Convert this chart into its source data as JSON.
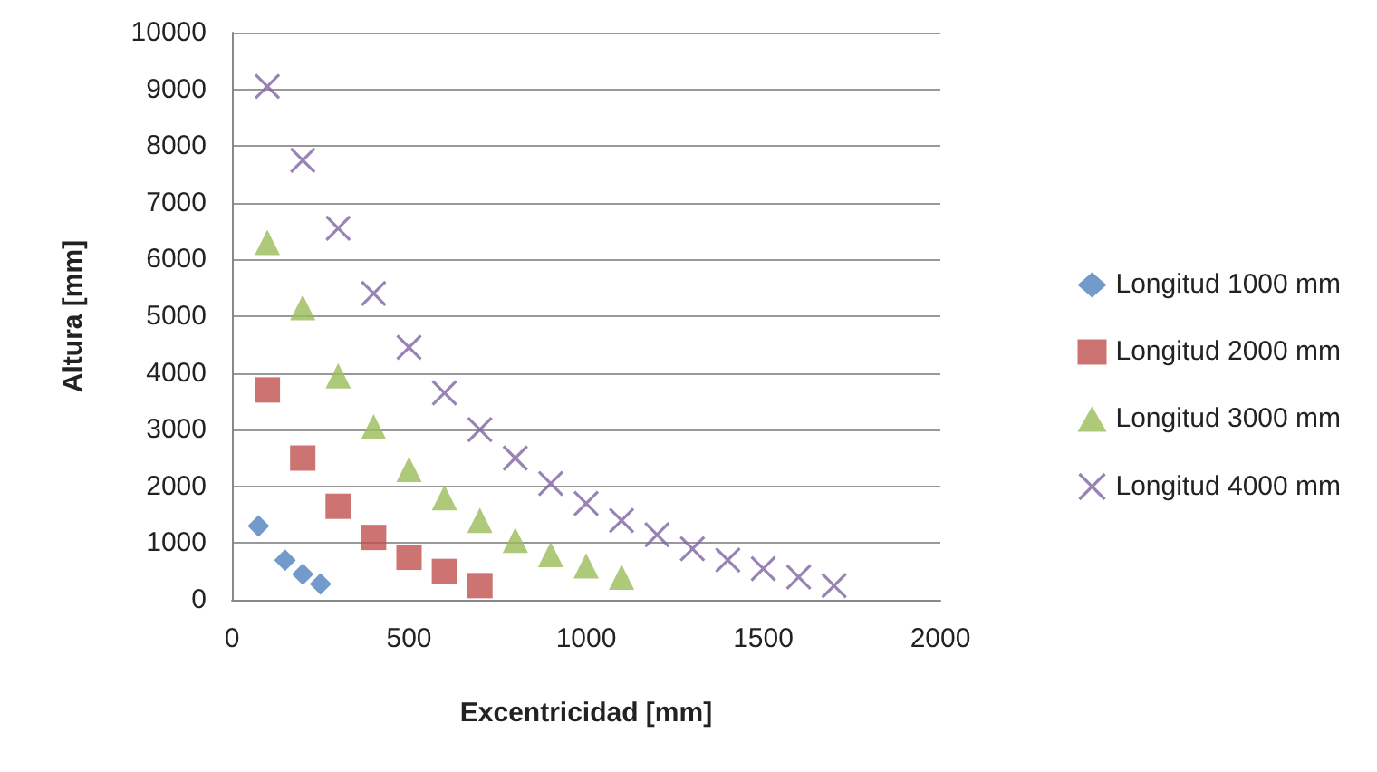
{
  "chart_data": {
    "type": "scatter",
    "xlabel": "Excentricidad [mm]",
    "ylabel": "Altura [mm]",
    "xlim": [
      0,
      2000
    ],
    "xticks": [
      0,
      500,
      1000,
      1500,
      2000
    ],
    "ylim": [
      0,
      10000
    ],
    "yticks": [
      0,
      1000,
      2000,
      3000,
      4000,
      5000,
      6000,
      7000,
      8000,
      9000,
      10000
    ],
    "grid": "y",
    "legend": "right",
    "series": [
      {
        "name": "Longitud 1000 mm",
        "color": "#4f81bd",
        "marker": "diamond",
        "x": [
          75,
          150,
          200,
          250
        ],
        "values": [
          1300,
          700,
          450,
          280
        ]
      },
      {
        "name": "Longitud 2000 mm",
        "color": "#c0504d",
        "marker": "square",
        "x": [
          100,
          200,
          300,
          400,
          500,
          600,
          700
        ],
        "values": [
          3700,
          2500,
          1650,
          1100,
          750,
          500,
          250
        ]
      },
      {
        "name": "Longitud 3000 mm",
        "color": "#9bbb59",
        "marker": "triangle",
        "x": [
          100,
          200,
          300,
          400,
          500,
          600,
          700,
          800,
          900,
          1000,
          1100
        ],
        "values": [
          6300,
          5150,
          3950,
          3050,
          2300,
          1800,
          1400,
          1050,
          800,
          600,
          400
        ]
      },
      {
        "name": "Longitud 4000 mm",
        "color": "#8064a2",
        "marker": "cross",
        "x": [
          100,
          200,
          300,
          400,
          500,
          600,
          700,
          800,
          900,
          1000,
          1100,
          1200,
          1300,
          1400,
          1500,
          1600,
          1700
        ],
        "values": [
          9050,
          7750,
          6550,
          5400,
          4450,
          3650,
          3000,
          2500,
          2050,
          1700,
          1400,
          1150,
          900,
          700,
          550,
          400,
          250
        ]
      }
    ]
  }
}
